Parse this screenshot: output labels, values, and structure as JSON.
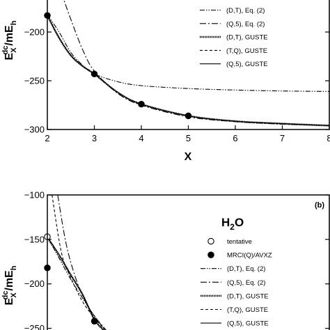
{
  "chart_data": [
    {
      "type": "line",
      "panel": "top",
      "xlabel": "X",
      "ylabel": {
        "main": "E",
        "sup": "dc",
        "sub": "X",
        "unit_main": "/mE",
        "unit_sub": "h"
      },
      "xlim": [
        2,
        8
      ],
      "ylim": [
        -300,
        -160
      ],
      "x_ticks": [
        2,
        3,
        4,
        5,
        6,
        7,
        8
      ],
      "y_ticks": [
        -300,
        -250,
        -200
      ],
      "grid": false,
      "legend_position": "top-right",
      "series": [
        {
          "name": "(D,T), Eq. (2)",
          "style": "dash-dot-dot",
          "x": [
            2,
            2.25,
            2.5,
            2.75,
            3,
            3.5,
            4,
            5,
            6,
            7,
            8
          ],
          "y": [
            -182,
            -200,
            -221,
            -234,
            -243,
            -251,
            -255,
            -258,
            -259.5,
            -260.5,
            -261
          ]
        },
        {
          "name": "(Q,5), Eq. (2)",
          "style": "dash-dot",
          "x": [
            2.3,
            2.5,
            2.75,
            3,
            3.5,
            4,
            5,
            6,
            7,
            8
          ],
          "y": [
            -160,
            -187,
            -218,
            -240,
            -263,
            -275,
            -287,
            -292,
            -294.5,
            -296
          ]
        },
        {
          "name": "(D,T), GUSTE",
          "style": "thick-dotted",
          "x": [
            2,
            2.25,
            2.5,
            2.75,
            3,
            3.5,
            4,
            5,
            6,
            7,
            8
          ],
          "y": [
            -183,
            -206,
            -224,
            -235,
            -243,
            -262,
            -274,
            -286,
            -291.5,
            -294,
            -296
          ]
        },
        {
          "name": "(T,Q), GUSTE",
          "style": "dashed",
          "x": [
            2,
            2.25,
            2.5,
            2.75,
            3,
            3.5,
            4,
            5,
            6,
            7,
            8
          ],
          "y": [
            -183,
            -206,
            -224,
            -235,
            -243,
            -262,
            -274,
            -286,
            -291.5,
            -294,
            -296
          ]
        },
        {
          "name": "(Q,5), GUSTE",
          "style": "solid",
          "x": [
            2,
            2.25,
            2.5,
            2.75,
            3,
            3.5,
            4,
            5,
            6,
            7,
            8
          ],
          "y": [
            -183,
            -206,
            -224,
            -235,
            -243,
            -262,
            -274,
            -286,
            -291.5,
            -294,
            -296
          ]
        },
        {
          "name": "",
          "style": "filled-circles",
          "x": [
            2,
            3,
            4,
            5
          ],
          "y": [
            -183,
            -243,
            -274,
            -286
          ]
        }
      ]
    },
    {
      "type": "line",
      "panel": "bottom",
      "panel_label": "(b)",
      "molecule": {
        "main": "H",
        "sub": "2",
        "end": "O"
      },
      "ylabel": {
        "main": "E",
        "sup": "dc",
        "sub": "X",
        "unit_main": "/mE",
        "unit_sub": "h"
      },
      "xlim": [
        2,
        8
      ],
      "ylim": [
        -255,
        -100
      ],
      "y_ticks": [
        -250,
        -200,
        -150,
        -100
      ],
      "grid": false,
      "legend_position": "right",
      "series": [
        {
          "name": "tentative",
          "style": "open-circles",
          "x": [
            2
          ],
          "y": [
            -147
          ]
        },
        {
          "name": "MRCI(Q)/AVXZ",
          "style": "filled-circles",
          "x": [
            2,
            3
          ],
          "y": [
            -182,
            -242
          ]
        },
        {
          "name": "(D,T), Eq. (2)",
          "style": "dash-dot-dot",
          "x": [
            2,
            2.25,
            2.5,
            2.75,
            3,
            3.2
          ],
          "y": [
            -147,
            -171,
            -195,
            -216,
            -236,
            -250
          ]
        },
        {
          "name": "(Q,5), Eq. (2)",
          "style": "dash-dot",
          "x": [
            2.22,
            2.4,
            2.6,
            2.8,
            3,
            3.25
          ],
          "y": [
            -100,
            -155,
            -193,
            -219,
            -236,
            -252
          ]
        },
        {
          "name": "(D,T), GUSTE",
          "style": "thick-dotted",
          "x": [
            2,
            2.25,
            2.5,
            2.75,
            3,
            3.2
          ],
          "y": [
            -148,
            -168,
            -190,
            -212,
            -240,
            -252
          ]
        },
        {
          "name": "(T,Q), GUSTE",
          "style": "dashed",
          "x": [
            2.1,
            2.3,
            2.5,
            2.75,
            3,
            3.25
          ],
          "y": [
            -100,
            -165,
            -193,
            -220,
            -238,
            -253
          ]
        },
        {
          "name": "(Q,5), GUSTE",
          "style": "solid",
          "x": [
            2,
            2.25,
            2.5,
            2.75,
            3,
            3.2
          ],
          "y": [
            -147,
            -167,
            -190,
            -212,
            -240,
            -252
          ]
        }
      ]
    }
  ]
}
